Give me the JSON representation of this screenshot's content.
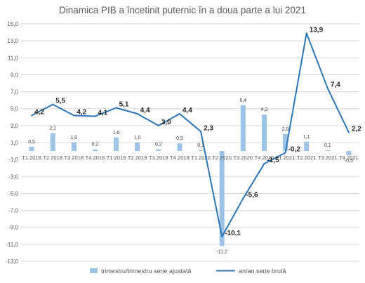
{
  "chart_data": {
    "type": "bar",
    "title": "Dinamica PIB a încetinit puternic în a doua parte a lui 2021",
    "categories": [
      "T1 2018",
      "T2 2018",
      "T3 2018",
      "T4 2018",
      "T1 2019",
      "T2 2019",
      "T3 2019",
      "T4 2019",
      "T1 2020",
      "T2 2020",
      "T3 2020",
      "T4 2020",
      "T1 2021",
      "T2 2021",
      "T3 2021",
      "T4 2021"
    ],
    "ylim": [
      -13.0,
      15.0
    ],
    "ytick_step": 2.0,
    "ytick_labels": [
      "-13,0",
      "-11,0",
      "-9,0",
      "-7,0",
      "-5,0",
      "-3,0",
      "-1,0",
      "1,0",
      "3,0",
      "5,0",
      "7,0",
      "9,0",
      "11,0",
      "13,0",
      "15,0"
    ],
    "grid": true,
    "legend_position": "bottom",
    "series": [
      {
        "name": "trimestru/trimestru serie ajustată",
        "type": "bar",
        "color": "#9dc3e6",
        "values": [
          0.5,
          2.1,
          1.0,
          0.2,
          1.6,
          1.0,
          0.2,
          0.9,
          0.1,
          -11.2,
          5.4,
          4.3,
          2.0,
          1.1,
          0.1,
          -0.5
        ],
        "labels": [
          "0,5",
          "2,1",
          "1,0",
          "0,2",
          "1,6",
          "1,0",
          "0,2",
          "0,9",
          "0,1",
          "-11,2",
          "5,4",
          "4,3",
          "2,0",
          "1,1",
          "0,1",
          "-0,5"
        ]
      },
      {
        "name": "an/an serie brută",
        "type": "line",
        "color": "#2e75b6",
        "values": [
          4.2,
          5.5,
          4.2,
          4.1,
          5.1,
          4.4,
          3.0,
          4.4,
          2.3,
          -10.1,
          -5.6,
          -1.5,
          -0.2,
          13.9,
          7.4,
          2.2
        ],
        "labels": [
          "4,2",
          "5,5",
          "4,2",
          "4,1",
          "5,1",
          "4,4",
          "3,0",
          "4,4",
          "2,3",
          "-10,1",
          "-5,6",
          "-1,5",
          "-0,2",
          "13,9",
          "7,4",
          "2,2"
        ]
      }
    ]
  }
}
